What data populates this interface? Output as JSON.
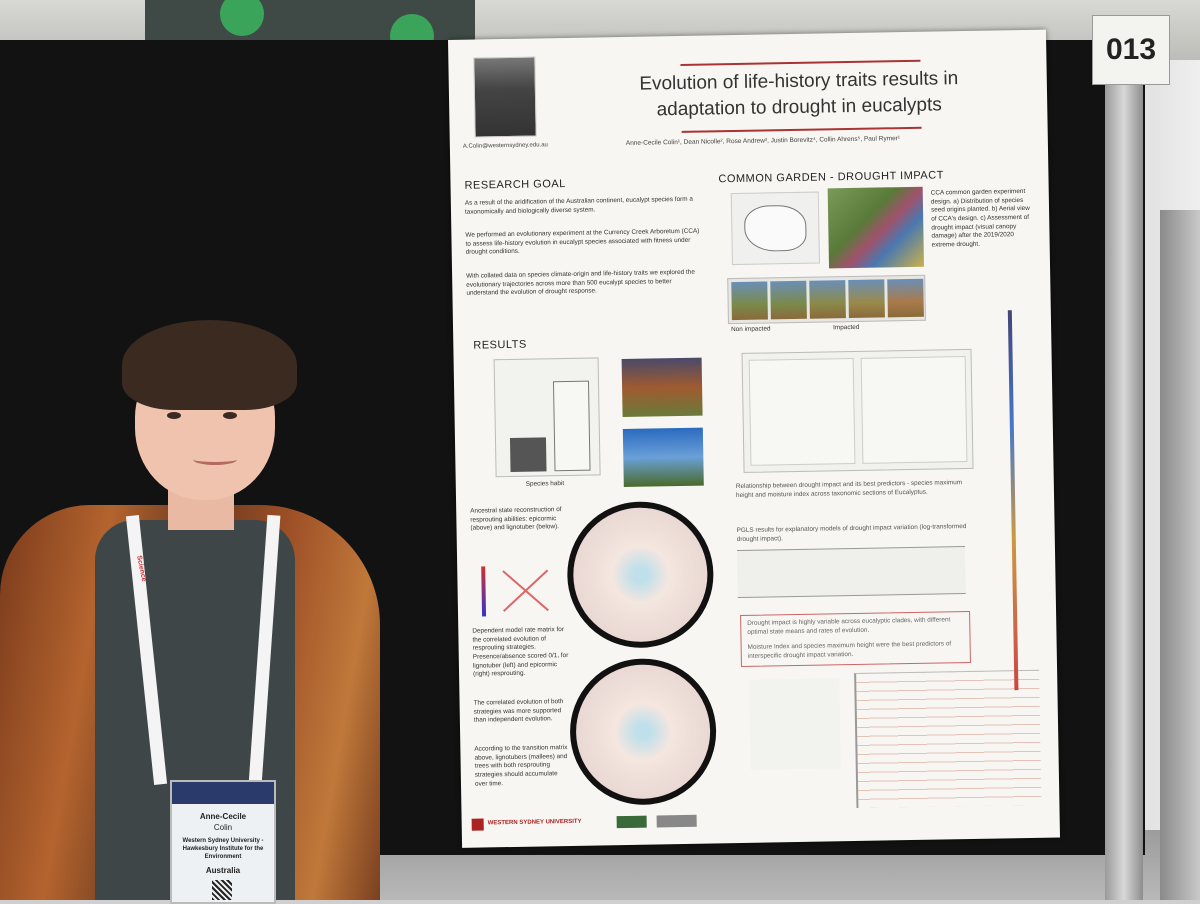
{
  "board": {
    "number": "013"
  },
  "poster": {
    "title_line1": "Evolution of life-history traits results in",
    "title_line2": "adaptation to drought in eucalypts",
    "email": "A.Colin@westernsydney.edu.au",
    "authors": "Anne-Cecile Colin¹, Dean Nicolle², Rose Andrew³, Justin Borevitz⁴, Collin Ahrens⁵, Paul Rymer¹",
    "research_goal": {
      "heading": "RESEARCH GOAL",
      "p1": "As a result of the aridification of the Australian continent, eucalypt species form a taxonomically and biologically diverse system.",
      "p2": "We performed an evolutionary experiment at the Currency Creek Arboretum (CCA) to assess life-history evolution in eucalypt species associated with fitness under drought conditions.",
      "p3": "With collated data on species climate-origin and life-history traits we explored the evolutionary trajectories across more than 500 eucalypt species to better understand the evolution of drought response."
    },
    "common_garden": {
      "heading": "COMMON GARDEN - DROUGHT IMPACT",
      "caption": "CCA common garden experiment design. a) Distribution of species seed origins planted. b) Aerial view of CCA's design. c) Assessment of drought impact (visual canopy damage) after the 2019/2020 extreme drought.",
      "label_non": "Non impacted",
      "label_imp": "Impacted"
    },
    "results": {
      "heading": "RESULTS",
      "xlabel": "Species habit",
      "ancestral": "Ancestral state reconstruction of resprouting abilities: epicormic (above) and lignotuber (below).",
      "dependent": "Dependent model rate matrix for the correlated evolution of resprouting strategies. Presence/absence scored 0/1, for lignotuber (left) and epicormic (right) resprouting.",
      "correlated": "The correlated evolution of both strategies was more supported than independent evolution.",
      "transition": "According to the transition matrix above, lignotubers (mallees) and trees with both resprouting strategies should accumulate over time.",
      "relationship": "Relationship between drought impact and its best predictors - species maximum height and moisture index across taxonomic sections of Eucalyptus.",
      "pgls": "PGLS results for explanatory models of drought impact variation (log-transformed drought impact).",
      "conclusion1": "Drought impact is highly variable across eucalyptic clades, with different optimal state means and rates of evolution.",
      "conclusion2": "Moisture Index and species maximum height were the best predictors of interspecific drought impact variation."
    },
    "footer": {
      "university": "WESTERN SYDNEY UNIVERSITY"
    }
  },
  "badge": {
    "first_name": "Anne-Cecile",
    "last_name": "Colin",
    "org_line1": "Western Sydney University -",
    "org_line2": "Hawkesbury Institute for the",
    "org_line3": "Environment",
    "country": "Australia"
  },
  "lanyard": {
    "text": "Science"
  }
}
